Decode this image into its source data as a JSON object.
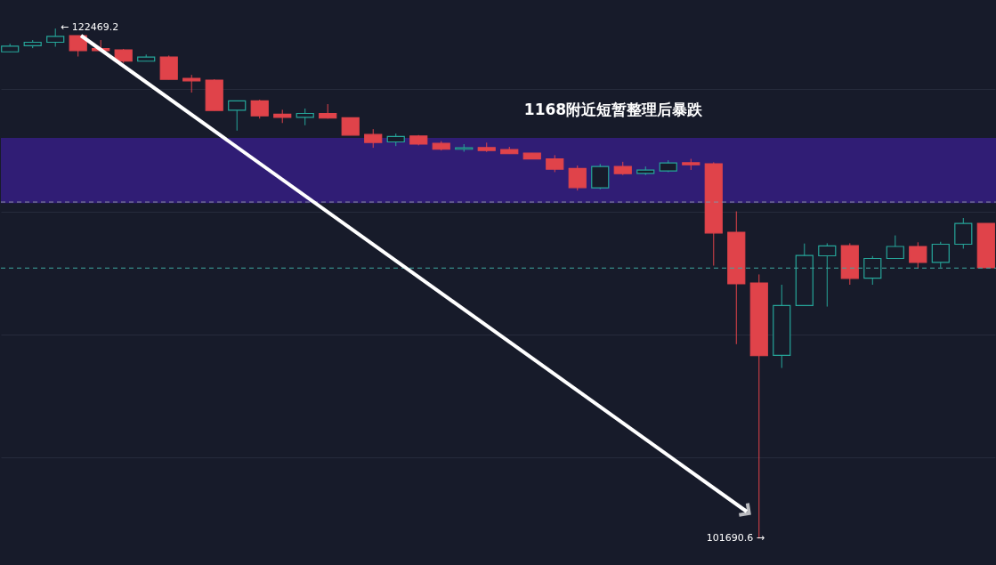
{
  "chart_data": {
    "type": "candlestick",
    "categories": [
      null,
      null,
      null,
      null,
      null,
      null,
      null,
      null,
      null,
      null,
      null,
      null,
      null,
      null,
      null,
      null,
      null,
      null,
      null,
      null,
      null,
      null,
      null,
      null,
      null,
      null,
      null,
      null,
      null,
      null,
      null,
      null,
      null,
      null,
      null,
      null,
      null,
      null,
      null,
      null,
      null,
      null,
      null,
      null
    ],
    "ohlc": [
      [
        121520,
        121850,
        121510,
        121750
      ],
      [
        121770,
        122000,
        121670,
        121910
      ],
      [
        121910,
        122469.2,
        121730,
        122150
      ],
      [
        122180,
        122180,
        121330,
        121570
      ],
      [
        121650,
        122000,
        121550,
        121570
      ],
      [
        121600,
        121640,
        121070,
        121140
      ],
      [
        121140,
        121410,
        121140,
        121310
      ],
      [
        121310,
        121370,
        120400,
        120400
      ],
      [
        120440,
        120580,
        119860,
        120340
      ],
      [
        120370,
        120400,
        119130,
        119130
      ],
      [
        119140,
        119520,
        118310,
        119520
      ],
      [
        119520,
        119570,
        118800,
        118910
      ],
      [
        118980,
        119160,
        118620,
        118850
      ],
      [
        118850,
        119210,
        118530,
        119010
      ],
      [
        119010,
        119390,
        118800,
        118820
      ],
      [
        118830,
        118830,
        118130,
        118130
      ],
      [
        118150,
        118370,
        117610,
        117830
      ],
      [
        117850,
        118190,
        117680,
        118070
      ],
      [
        118090,
        118130,
        117710,
        117760
      ],
      [
        117790,
        117880,
        117500,
        117550
      ],
      [
        117550,
        117760,
        117450,
        117610
      ],
      [
        117620,
        117820,
        117440,
        117500
      ],
      [
        117540,
        117650,
        117370,
        117370
      ],
      [
        117390,
        117390,
        117150,
        117160
      ],
      [
        117160,
        117310,
        116620,
        116740
      ],
      [
        116770,
        116890,
        115870,
        115990
      ],
      [
        115980,
        116950,
        115920,
        116850
      ],
      [
        116850,
        117040,
        116500,
        116560
      ],
      [
        116570,
        116850,
        116500,
        116700
      ],
      [
        116670,
        117100,
        116620,
        116990
      ],
      [
        117000,
        117160,
        116710,
        116920
      ],
      [
        116960,
        117020,
        112810,
        114140
      ],
      [
        114170,
        115020,
        109610,
        112070
      ],
      [
        112100,
        112450,
        101690.6,
        109140
      ],
      [
        109150,
        112030,
        108640,
        111180
      ],
      [
        111180,
        113710,
        111180,
        113220
      ],
      [
        113210,
        113720,
        111140,
        113610
      ],
      [
        113620,
        113720,
        112030,
        112290
      ],
      [
        112300,
        113200,
        112030,
        113100
      ],
      [
        113100,
        114040,
        113100,
        113590
      ],
      [
        113590,
        113760,
        112690,
        112940
      ],
      [
        112940,
        113780,
        112730,
        113680
      ],
      [
        113680,
        114750,
        113500,
        114530
      ],
      [
        114530,
        114530,
        112720,
        112720
      ]
    ],
    "colors": [
      "#26a69a",
      "#26a69a",
      "#26a69a",
      "#e0434a",
      "#e0434a",
      "#e0434a",
      "#26a69a",
      "#e0434a",
      "#e0434a",
      "#e0434a",
      "#26a69a",
      "#e0434a",
      "#e0434a",
      "#26a69a",
      "#e0434a",
      "#e0434a",
      "#e0434a",
      "#26a69a",
      "#e0434a",
      "#e0434a",
      "#26a69a",
      "#e0434a",
      "#e0434a",
      "#e0434a",
      "#e0434a",
      "#e0434a",
      "#26a69a",
      "#e0434a",
      "#26a69a",
      "#26a69a",
      "#e0434a",
      "#e0434a",
      "#e0434a",
      "#e0434a",
      "#26a69a",
      "#26a69a",
      "#26a69a",
      "#e0434a",
      "#26a69a",
      "#26a69a",
      "#e0434a",
      "#26a69a",
      "#26a69a",
      "#e0434a"
    ],
    "annotations": [
      "1168附近短暂整理后暴跌",
      "← 122469.2",
      "101690.6 →"
    ],
    "bands": [
      {
        "axis": "y",
        "from": 115360,
        "to": 118010,
        "color": "#3a1f8f"
      }
    ],
    "ref_lines": [
      {
        "axis": "y",
        "value": 115400,
        "color": "#8a90a3",
        "line_style": "dashed"
      },
      {
        "axis": "y",
        "value": 112710,
        "color": "#3fa7a0",
        "line_style": "dashed"
      }
    ],
    "grid": "y"
  }
}
